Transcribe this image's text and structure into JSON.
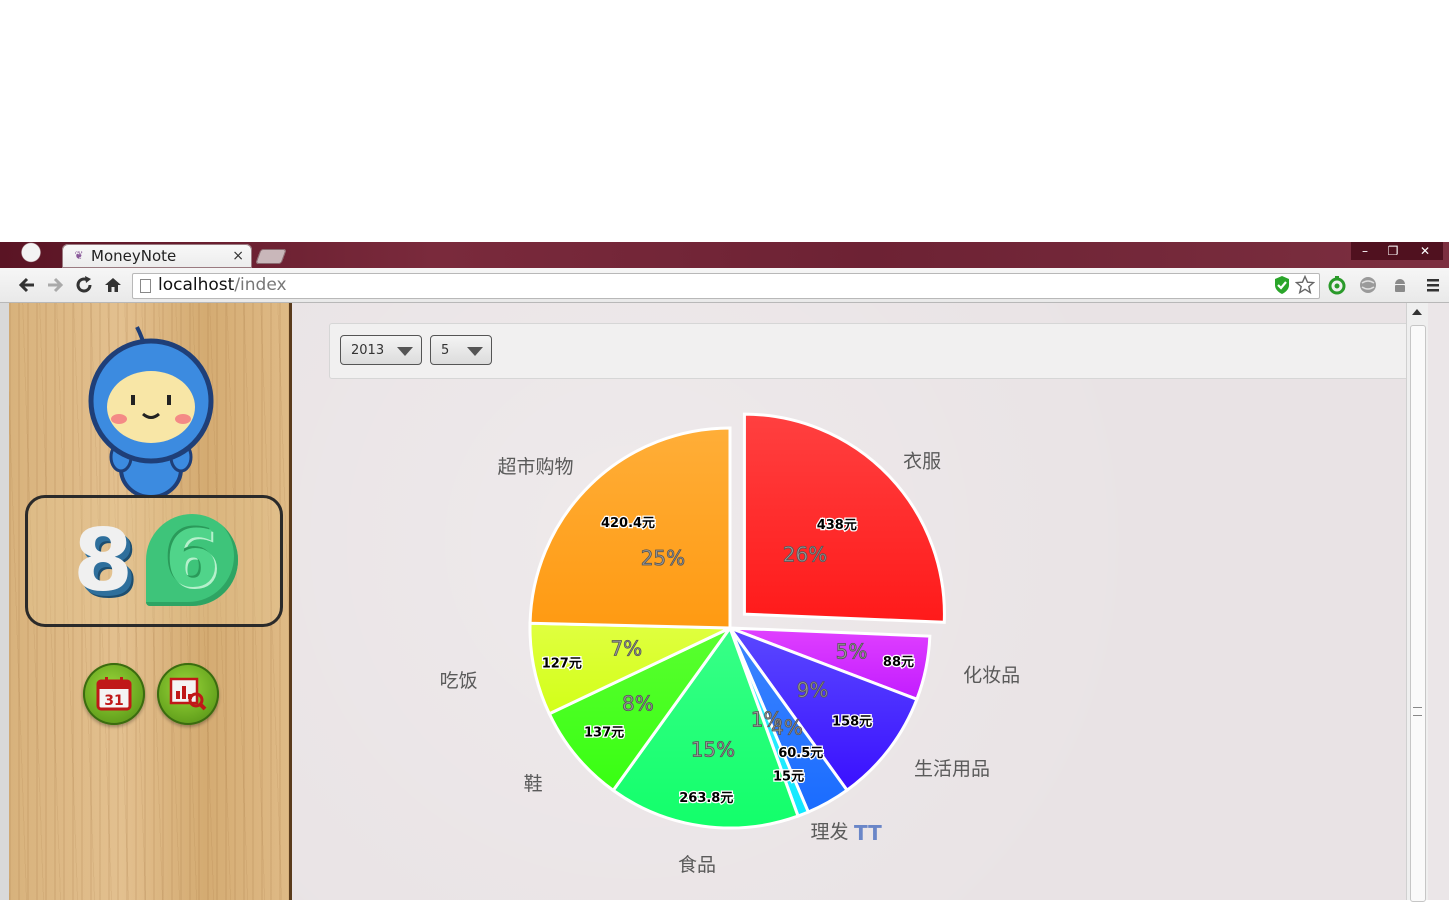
{
  "browser": {
    "tab_title": "MoneyNote",
    "tab_close": "×",
    "url_host": "localhost",
    "url_path": "/index",
    "window_controls": [
      "–",
      "❐",
      "✕"
    ]
  },
  "sidebar": {
    "day_digit": "8",
    "month_digit": "6",
    "calendar_icon_text": "31"
  },
  "filters": {
    "year": "2013",
    "month": "5"
  },
  "chart_data": {
    "type": "pie",
    "slices": [
      {
        "label": "衣服",
        "amount": "438元",
        "percent": "26%",
        "value": 438,
        "color": "#ff1a1a",
        "color2": "#ff4040"
      },
      {
        "label": "化妆品",
        "amount": "88元",
        "percent": "5%",
        "value": 88,
        "color": "#c21cff",
        "color2": "#e040ff"
      },
      {
        "label": "生活用品",
        "amount": "158元",
        "percent": "9%",
        "value": 158,
        "color": "#3a10ff",
        "color2": "#5a48ff"
      },
      {
        "label": "",
        "amount": "60.5元",
        "percent": "4%",
        "value": 60.5,
        "color": "#1a6cff",
        "color2": "#3d85ff"
      },
      {
        "label": "理发",
        "amount": "15元",
        "percent": "1%",
        "value": 15,
        "color": "#10e8ff",
        "color2": "#40f0ff"
      },
      {
        "label": "食品",
        "amount": "263.8元",
        "percent": "15%",
        "value": 263.8,
        "color": "#12ff6a",
        "color2": "#38ff88"
      },
      {
        "label": "鞋",
        "amount": "137元",
        "percent": "8%",
        "value": 137,
        "color": "#38ff12",
        "color2": "#5aff30"
      },
      {
        "label": "吃饭",
        "amount": "127元",
        "percent": "7%",
        "value": 127,
        "color": "#d2ff18",
        "color2": "#e0ff40"
      },
      {
        "label": "超市购物",
        "amount": "420.4元",
        "percent": "25%",
        "value": 420.4,
        "color": "#ff9a12",
        "color2": "#ffae38"
      }
    ],
    "annotation": "TT"
  }
}
